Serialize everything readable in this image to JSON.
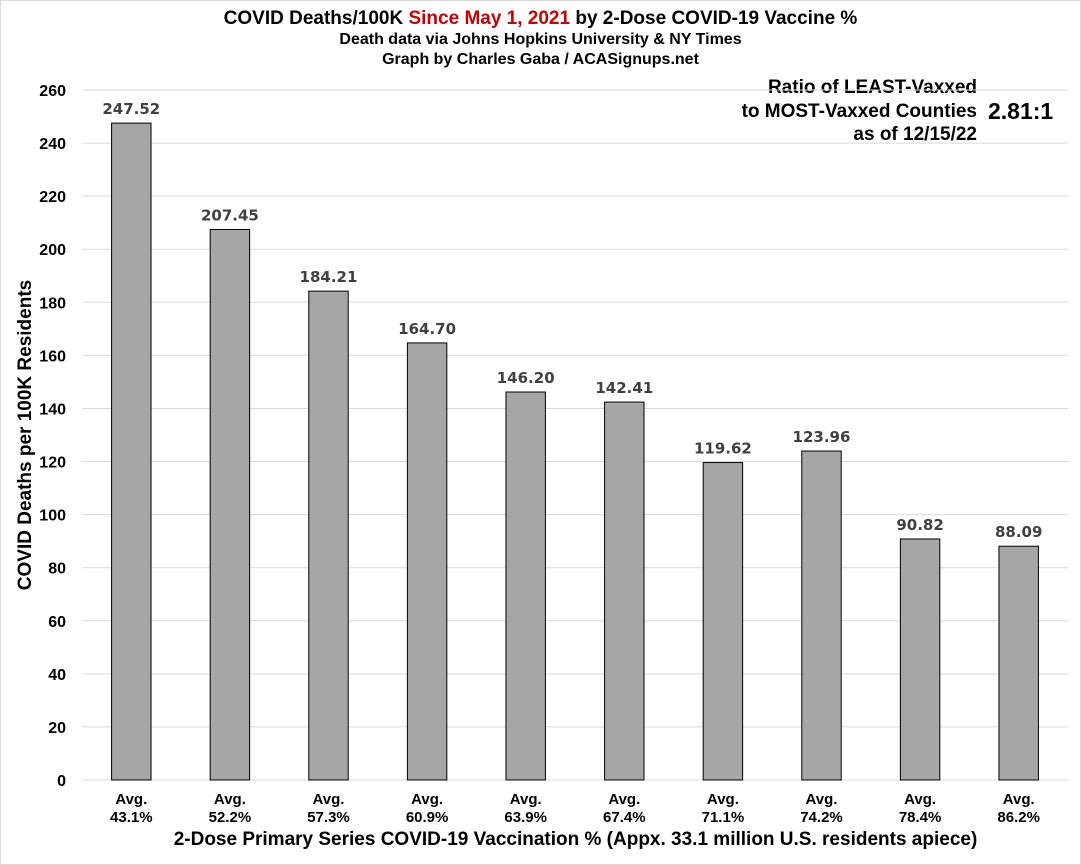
{
  "header": {
    "title_part1": "COVID Deaths/100K ",
    "title_highlight": "Since May 1, 2021",
    "title_part2": " by 2-Dose COVID-19 Vaccine %",
    "subtitle1": "Death data via Johns Hopkins University & NY Times",
    "subtitle2": "Graph by Charles Gaba / ACASignups.net"
  },
  "annotation": {
    "line1": "Ratio of LEAST-Vaxxed",
    "line2": "to MOST-Vaxxed Counties",
    "line3": "as of 12/15/22",
    "ratio": "2.81:1"
  },
  "colors": {
    "bar_fill": "#a6a6a6",
    "bar_stroke": "#000000",
    "title_highlight": "#c00000",
    "gridline": "#d9d9d9",
    "label_text": "#404040"
  },
  "chart_data": {
    "type": "bar",
    "title": "COVID Deaths/100K Since May 1, 2021 by 2-Dose COVID-19 Vaccine %",
    "xlabel": "2-Dose Primary Series COVID-19 Vaccination % (Appx. 33.1 million U.S. residents apiece)",
    "ylabel": "COVID Deaths per 100K Residents",
    "ylim": [
      0,
      260
    ],
    "yticks": [
      "0",
      "20",
      "40",
      "60",
      "80",
      "100",
      "120",
      "140",
      "160",
      "180",
      "200",
      "220",
      "240",
      "260"
    ],
    "grid": true,
    "categories": [
      {
        "line1": "Avg.",
        "line2": "43.1%"
      },
      {
        "line1": "Avg.",
        "line2": "52.2%"
      },
      {
        "line1": "Avg.",
        "line2": "57.3%"
      },
      {
        "line1": "Avg.",
        "line2": "60.9%"
      },
      {
        "line1": "Avg.",
        "line2": "63.9%"
      },
      {
        "line1": "Avg.",
        "line2": "67.4%"
      },
      {
        "line1": "Avg.",
        "line2": "71.1%"
      },
      {
        "line1": "Avg.",
        "line2": "74.2%"
      },
      {
        "line1": "Avg.",
        "line2": "78.4%"
      },
      {
        "line1": "Avg.",
        "line2": "86.2%"
      }
    ],
    "values": [
      247.52,
      207.45,
      184.21,
      164.7,
      146.2,
      142.41,
      119.62,
      123.96,
      90.82,
      88.09
    ],
    "value_labels": [
      "247.52",
      "207.45",
      "184.21",
      "164.70",
      "146.20",
      "142.41",
      "119.62",
      "123.96",
      "90.82",
      "88.09"
    ]
  }
}
